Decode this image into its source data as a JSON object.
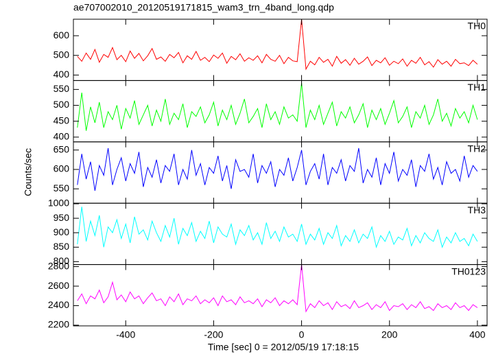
{
  "chart_data": {
    "type": "line",
    "title": "ae707002010_20120519171815_wam3_trn_4band_long.qdp",
    "xlabel": "Time [sec] 0 = 2012/05/19 17:18:15",
    "ylabel": "Counts/sec",
    "xlim": [
      -519,
      422
    ],
    "xticks": [
      -400,
      -200,
      0,
      200,
      400
    ],
    "x": [
      -510,
      -500,
      -490,
      -480,
      -470,
      -460,
      -450,
      -440,
      -430,
      -420,
      -410,
      -400,
      -390,
      -380,
      -370,
      -360,
      -350,
      -340,
      -330,
      -320,
      -310,
      -300,
      -290,
      -280,
      -270,
      -260,
      -250,
      -240,
      -230,
      -220,
      -210,
      -200,
      -190,
      -180,
      -170,
      -160,
      -150,
      -140,
      -130,
      -120,
      -110,
      -100,
      -90,
      -80,
      -70,
      -60,
      -50,
      -40,
      -30,
      -20,
      -10,
      0,
      10,
      20,
      30,
      40,
      50,
      60,
      70,
      80,
      90,
      100,
      110,
      120,
      130,
      140,
      150,
      160,
      170,
      180,
      190,
      200,
      210,
      220,
      230,
      240,
      250,
      260,
      270,
      280,
      290,
      300,
      310,
      320,
      330,
      340,
      350,
      360,
      370,
      380,
      390,
      400
    ],
    "series": [
      {
        "name": "TH0",
        "color": "#ff0000",
        "ylim": [
          372,
          684
        ],
        "yticks": [
          400,
          500,
          600
        ],
        "values": [
          495,
          470,
          512,
          480,
          530,
          465,
          505,
          490,
          540,
          478,
          500,
          468,
          522,
          485,
          510,
          472,
          498,
          535,
          480,
          492,
          470,
          505,
          488,
          515,
          462,
          498,
          480,
          520,
          475,
          490,
          468,
          502,
          485,
          512,
          460,
          495,
          478,
          508,
          470,
          488,
          475,
          498,
          462,
          505,
          480,
          470,
          500,
          458,
          490,
          472,
          468,
          684,
          430,
          470,
          452,
          490,
          465,
          480,
          445,
          495,
          460,
          478,
          450,
          485,
          455,
          470,
          492,
          448,
          475,
          462,
          488,
          450,
          470,
          458,
          482,
          445,
          475,
          460,
          490,
          452,
          468,
          440,
          478,
          455,
          470,
          445,
          480,
          458,
          462,
          448,
          475,
          455
        ]
      },
      {
        "name": "TH1",
        "color": "#00ff00",
        "ylim": [
          385,
          578
        ],
        "yticks": [
          400,
          450,
          500,
          550
        ],
        "values": [
          430,
          540,
          420,
          495,
          445,
          510,
          430,
          480,
          455,
          500,
          425,
          490,
          460,
          515,
          440,
          470,
          500,
          435,
          485,
          450,
          520,
          440,
          475,
          455,
          505,
          430,
          480,
          465,
          495,
          445,
          470,
          510,
          435,
          485,
          455,
          500,
          440,
          475,
          520,
          445,
          465,
          490,
          430,
          505,
          455,
          480,
          440,
          495,
          460,
          470,
          450,
          570,
          430,
          485,
          455,
          500,
          440,
          475,
          510,
          435,
          480,
          460,
          495,
          445,
          470,
          505,
          430,
          485,
          455,
          490,
          440,
          475,
          515,
          445,
          465,
          495,
          430,
          480,
          460,
          500,
          440,
          470,
          520,
          450,
          475,
          435,
          490,
          460,
          480,
          445,
          500,
          455
        ]
      },
      {
        "name": "TH2",
        "color": "#0000ff",
        "ylim": [
          513,
          671
        ],
        "yticks": [
          550,
          600,
          650
        ],
        "values": [
          560,
          640,
          575,
          620,
          545,
          610,
          585,
          655,
          560,
          600,
          630,
          570,
          615,
          590,
          645,
          555,
          605,
          580,
          625,
          565,
          610,
          595,
          640,
          560,
          600,
          575,
          650,
          585,
          615,
          560,
          605,
          590,
          635,
          570,
          610,
          550,
          625,
          595,
          600,
          580,
          640,
          565,
          610,
          590,
          620,
          555,
          600,
          585,
          630,
          570,
          605,
          650,
          560,
          595,
          615,
          575,
          640,
          560,
          605,
          590,
          625,
          570,
          610,
          595,
          655,
          565,
          600,
          580,
          630,
          560,
          615,
          590,
          645,
          570,
          600,
          585,
          625,
          555,
          610,
          595,
          640,
          575,
          605,
          560,
          620,
          590,
          600,
          570,
          635,
          580,
          610,
          595
        ]
      },
      {
        "name": "TH3",
        "color": "#00ffff",
        "ylim": [
          790,
          1002
        ],
        "yticks": [
          800,
          850,
          900,
          950,
          1000
        ],
        "values": [
          860,
          990,
          870,
          940,
          890,
          960,
          850,
          920,
          900,
          945,
          880,
          930,
          865,
          955,
          895,
          910,
          875,
          940,
          900,
          870,
          925,
          885,
          950,
          860,
          915,
          890,
          935,
          870,
          905,
          880,
          940,
          865,
          920,
          895,
          885,
          930,
          860,
          910,
          890,
          925,
          875,
          900,
          860,
          935,
          880,
          905,
          870,
          920,
          885,
          895,
          870,
          930,
          860,
          895,
          875,
          915,
          860,
          900,
          880,
          925,
          855,
          890,
          870,
          910,
          865,
          895,
          880,
          920,
          850,
          890,
          870,
          905,
          860,
          885,
          875,
          915,
          855,
          890,
          865,
          900,
          880,
          870,
          910,
          850,
          885,
          865,
          900,
          870,
          880,
          855,
          895,
          870
        ]
      },
      {
        "name": "TH0123",
        "color": "#ff00ff",
        "ylim": [
          2193,
          2821
        ],
        "yticks": [
          2200,
          2400,
          2600,
          2800
        ],
        "values": [
          2450,
          2520,
          2420,
          2500,
          2470,
          2560,
          2430,
          2490,
          2640,
          2460,
          2510,
          2440,
          2540,
          2470,
          2500,
          2420,
          2480,
          2530,
          2450,
          2470,
          2400,
          2490,
          2440,
          2520,
          2410,
          2470,
          2450,
          2500,
          2420,
          2460,
          2430,
          2480,
          2400,
          2500,
          2440,
          2460,
          2410,
          2490,
          2430,
          2450,
          2420,
          2470,
          2390,
          2460,
          2430,
          2480,
          2400,
          2450,
          2420,
          2460,
          2410,
          2821,
          2340,
          2420,
          2380,
          2450,
          2400,
          2430,
          2360,
          2440,
          2390,
          2410,
          2370,
          2450,
          2380,
          2400,
          2430,
          2360,
          2410,
          2380,
          2440,
          2350,
          2400,
          2390,
          2420,
          2360,
          2410,
          2380,
          2440,
          2370,
          2390,
          2350,
          2420,
          2380,
          2400,
          2360,
          2430,
          2380,
          2400,
          2350,
          2410,
          2380
        ]
      }
    ]
  }
}
